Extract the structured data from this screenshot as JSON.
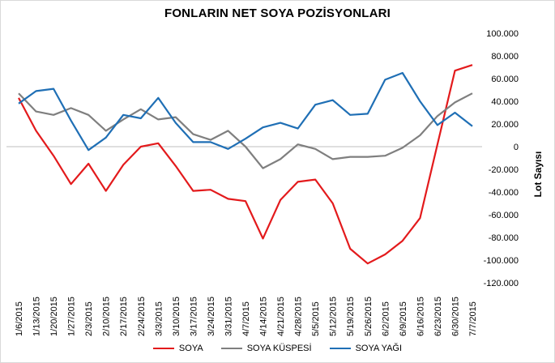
{
  "chart_data": {
    "type": "line",
    "title": "FONLARIN NET SOYA POZİSYONLARI",
    "ylabel": "Lot Sayısı",
    "xlabel": "",
    "ylim": [
      -120000,
      100000
    ],
    "y_ticks": [
      100000,
      80000,
      60000,
      40000,
      20000,
      0,
      -20000,
      -40000,
      -60000,
      -80000,
      -100000,
      -120000
    ],
    "y_tick_labels": [
      "100.000",
      "80.000",
      "60.000",
      "40.000",
      "20.000",
      "0",
      "-20.000",
      "-40.000",
      "-60.000",
      "-80.000",
      "-100.000",
      "-120.000"
    ],
    "grid": false,
    "legend_position": "bottom",
    "categories": [
      "1/6/2015",
      "1/13/2015",
      "1/20/2015",
      "1/27/2015",
      "2/3/2015",
      "2/10/2015",
      "2/17/2015",
      "2/24/2015",
      "3/3/2015",
      "3/10/2015",
      "3/17/2015",
      "3/24/2015",
      "3/31/2015",
      "4/7/2015",
      "4/14/2015",
      "4/21/2015",
      "4/28/2015",
      "5/5/2015",
      "5/12/2015",
      "5/19/2015",
      "5/26/2015",
      "6/2/2015",
      "6/9/2015",
      "6/16/2015",
      "6/23/2015",
      "6/30/2015",
      "7/7/2015"
    ],
    "series": [
      {
        "name": "SOYA",
        "color": "#e31a1c",
        "values": [
          43000,
          14000,
          -8000,
          -33000,
          -15000,
          -39000,
          -16000,
          0,
          3000,
          -17000,
          -39000,
          -38000,
          -46000,
          -48000,
          -81000,
          -47000,
          -31000,
          -29000,
          -50000,
          -90000,
          -103000,
          -95000,
          -83000,
          -63000,
          2000,
          67000,
          72000
        ]
      },
      {
        "name": "SOYA KÜSPESİ",
        "color": "#7f7f7f",
        "values": [
          47000,
          31000,
          28000,
          34000,
          28000,
          14000,
          24000,
          33000,
          24000,
          26000,
          11000,
          6000,
          14000,
          0,
          -19000,
          -11000,
          2000,
          -2000,
          -11000,
          -9000,
          -9000,
          -8000,
          -1000,
          10000,
          27000,
          39000,
          47000
        ]
      },
      {
        "name": "SOYA YAĞI",
        "color": "#1f6fb5",
        "values": [
          38000,
          49000,
          51000,
          23000,
          -3000,
          8000,
          28000,
          25000,
          43000,
          21000,
          4000,
          4000,
          -2000,
          7000,
          17000,
          21000,
          16000,
          37000,
          41000,
          28000,
          29000,
          59000,
          65000,
          40000,
          19000,
          30000,
          18000
        ]
      }
    ]
  }
}
